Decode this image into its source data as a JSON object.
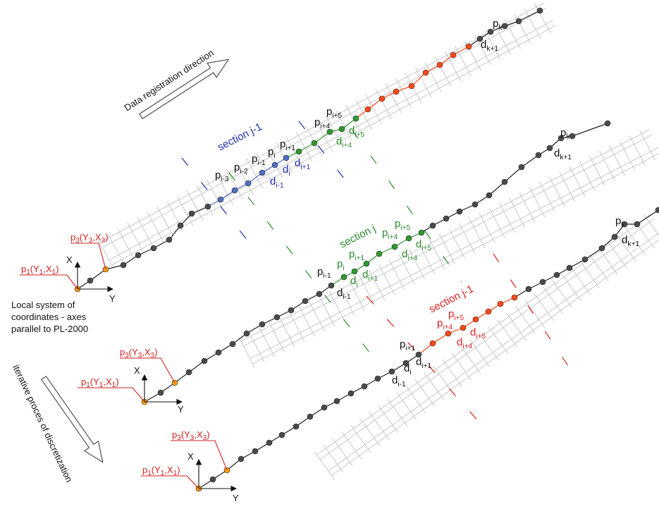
{
  "texts": {
    "direction": "Data registration direction",
    "iterative": "iterative proces of discretization",
    "local1": "Local system of",
    "local2": "coordinates - axes",
    "local3": "parallel to PL-2000",
    "sec_top": "section j-1",
    "sec_mid": "section j",
    "sec_bot": "section j-1",
    "axis_x": "X",
    "axis_y": "Y"
  },
  "points": {
    "p": "p",
    "d": "d",
    "p1": "p1(Y1,X1)",
    "p3": "p3(Y3,X3)",
    "i_minus_3": "i-3",
    "i_minus_2": "i-2",
    "i_minus_1": "i-1",
    "i": "i",
    "i_plus_1": "i+1",
    "i_plus_4": "i+4",
    "i_plus_5": "i+5",
    "k": "k",
    "k_plus_1": "k+1",
    "one": "1",
    "three": "3"
  },
  "colors": {
    "section_prev": "#1f2fb0",
    "section_cur": "#2e8a2e",
    "section_next": "#e02020",
    "node_grey": "#4a4a4a",
    "node_blue": "#4f6fc0",
    "node_green": "#2e9a2e",
    "node_red": "#ff4a1a",
    "node_orange": "#f5a010",
    "track": "#c9c9c9"
  }
}
